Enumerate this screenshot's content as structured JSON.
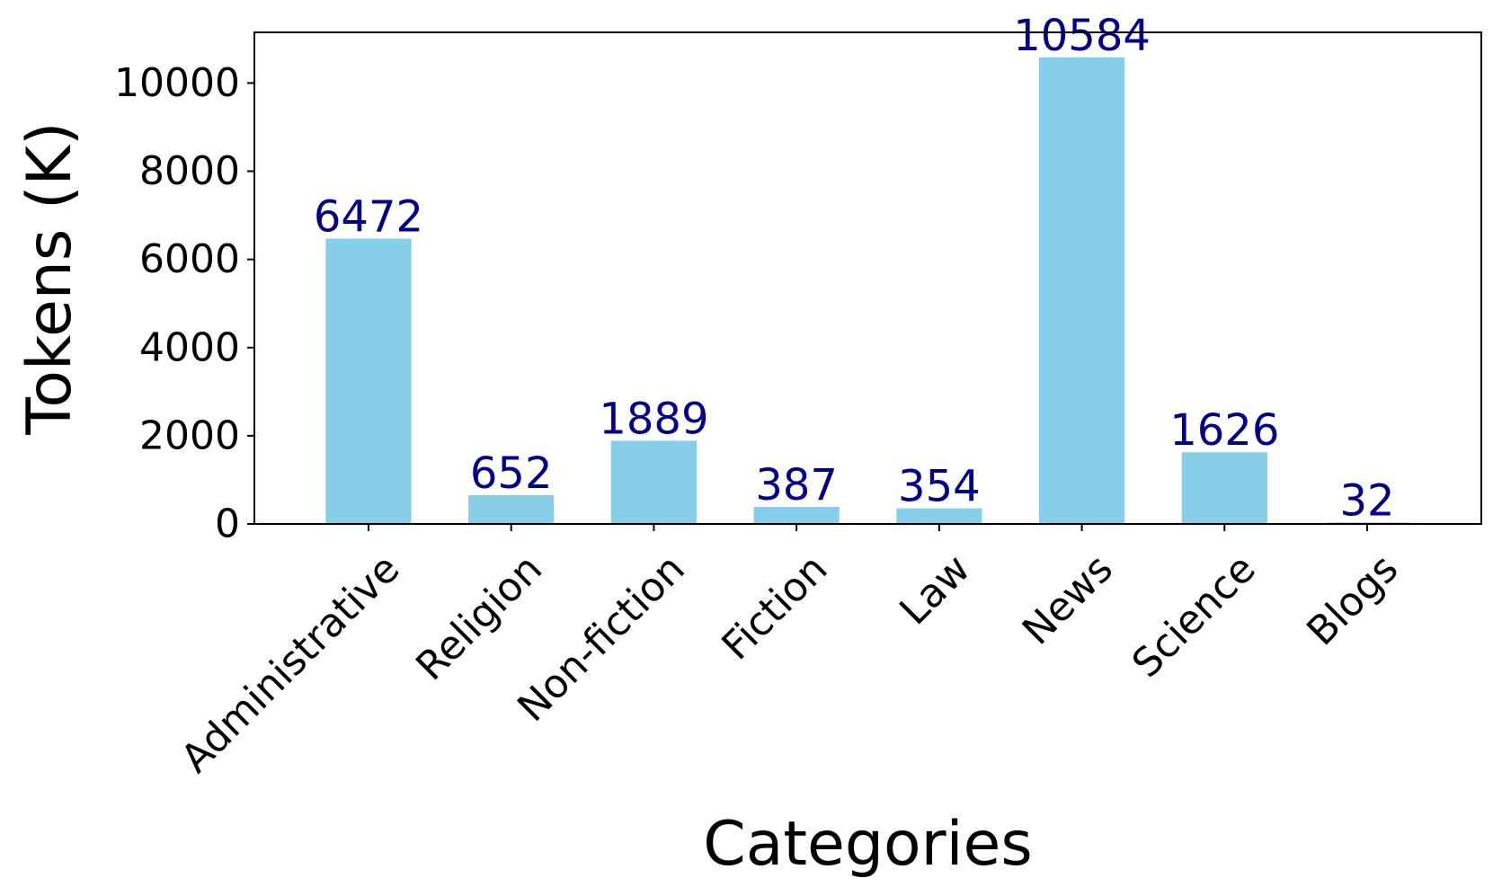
{
  "chart_data": {
    "type": "bar",
    "title": "",
    "xlabel": "Categories",
    "ylabel": "Tokens (K)",
    "categories": [
      "Administrative",
      "Religion",
      "Non-fiction",
      "Fiction",
      "Law",
      "News",
      "Science",
      "Blogs"
    ],
    "values": [
      6472,
      652,
      1889,
      387,
      354,
      10584,
      1626,
      32
    ],
    "value_labels": [
      "6472",
      "652",
      "1889",
      "387",
      "354",
      "10584",
      "1626",
      "32"
    ],
    "ylim": [
      0,
      11150
    ],
    "yticks": [
      0,
      2000,
      4000,
      6000,
      8000,
      10000
    ],
    "ytick_labels": [
      "0",
      "2000",
      "4000",
      "6000",
      "8000",
      "10000"
    ],
    "grid": false,
    "legend": "none",
    "bar_color": "#87CEEB",
    "value_label_color": "#00008B",
    "xtick_rotation_deg": -45
  }
}
